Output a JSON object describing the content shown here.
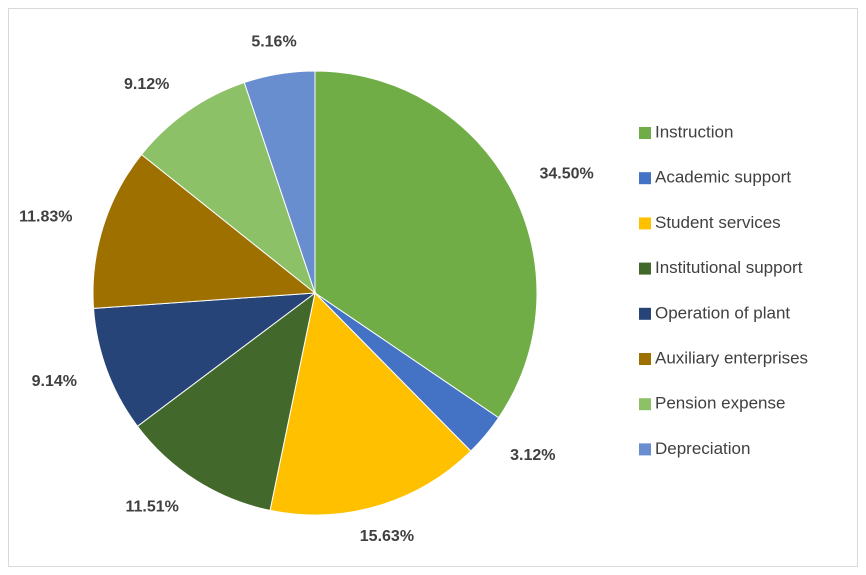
{
  "chart_data": {
    "type": "pie",
    "categories": [
      "Instruction",
      "Academic support",
      "Student services",
      "Institutional support",
      "Operation of plant",
      "Auxiliary enterprises",
      "Pension expense",
      "Depreciation"
    ],
    "values": [
      34.5,
      3.12,
      15.63,
      11.51,
      9.14,
      11.83,
      9.12,
      5.16
    ],
    "value_labels": [
      "34.50%",
      "3.12%",
      "15.63%",
      "11.51%",
      "9.14%",
      "11.83%",
      "9.12%",
      "5.16%"
    ],
    "colors": [
      "#70ad47",
      "#4472c4",
      "#ffc000",
      "#43682b",
      "#264478",
      "#9e7000",
      "#8cc168",
      "#698ed0"
    ],
    "legend": "right"
  }
}
